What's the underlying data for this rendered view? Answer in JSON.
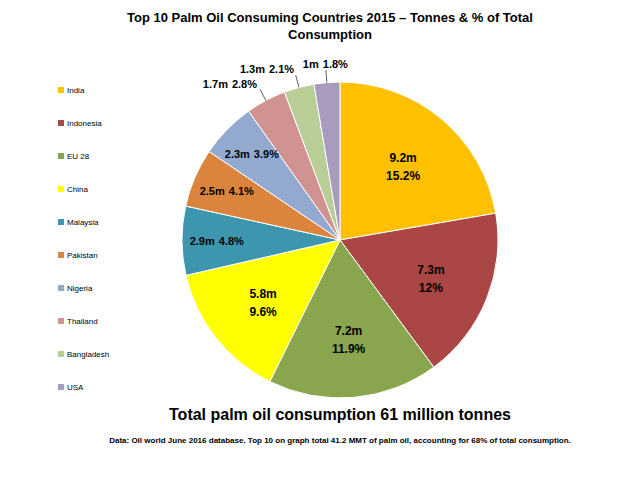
{
  "chart_data": {
    "type": "pie",
    "title": "Top 10 Palm Oil Consuming Countries 2015 – Tonnes & % of Total Consumption",
    "categories": [
      "India",
      "Indonesia",
      "EU 28",
      "China",
      "Malaysia",
      "Pakistan",
      "Nigeria",
      "Thailand",
      "Bangladesh",
      "USA"
    ],
    "values": [
      15.2,
      12,
      11.9,
      9.6,
      4.8,
      4.1,
      3.9,
      2.8,
      2.1,
      1.8
    ],
    "value_labels": [
      "15.2%",
      "12%",
      "11.9%",
      "9.6%",
      "4.8%",
      "4.1%",
      "3.9%",
      "2.8%",
      "2.1%",
      "1.8%"
    ],
    "tonnes": [
      9.2,
      7.3,
      7.2,
      5.8,
      2.9,
      2.5,
      2.3,
      1.7,
      1.3,
      1
    ],
    "tonnes_labels": [
      "9.2m",
      "7.3m",
      "7.2m",
      "5.8m",
      "2.9m",
      "2.5m",
      "2.3m",
      "1.7m",
      "1.3m",
      "1m"
    ],
    "colors": [
      "#FFC000",
      "#AA4643",
      "#89A54E",
      "#FFFF00",
      "#3D96AE",
      "#DB843D",
      "#93A9CF",
      "#D19392",
      "#B9CD96",
      "#A99BBD"
    ],
    "data_labels": true,
    "legend": "left",
    "subtitle": "Total palm oil consumption 61 million tonnes",
    "footnote": "Data: Oil world June 2016 database. Top 10 on graph total 41.2 MMT of palm oil, accounting for 68% of total consumption."
  }
}
